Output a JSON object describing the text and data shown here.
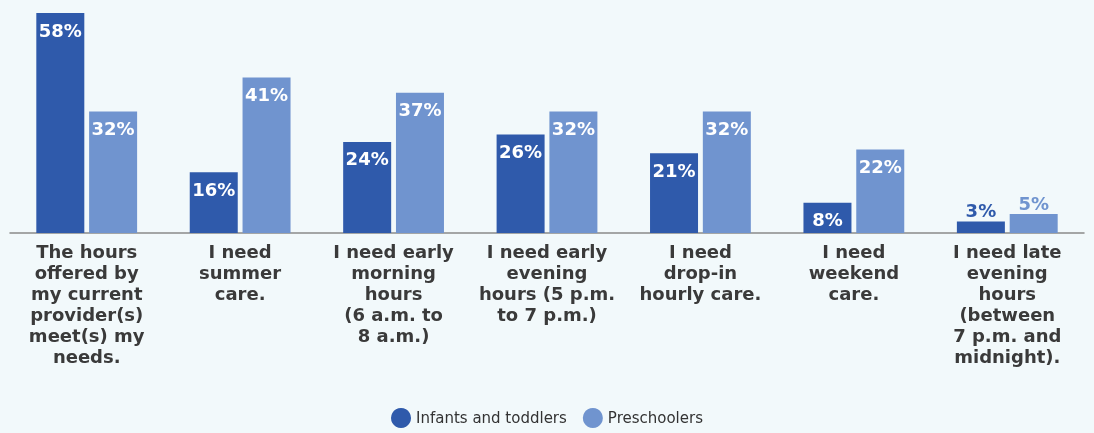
{
  "chart_data": {
    "type": "bar",
    "categories": [
      "The hours\noffered by\nmy current\nprovider(s)\nmeet(s) my\nneeds.",
      "I need\nsummer\ncare.",
      "I need early\nmorning\nhours\n(6 a.m. to\n8 a.m.)",
      "I need early\nevening\nhours (5 p.m.\nto 7 p.m.)",
      "I need\ndrop-in\nhourly care.",
      "I need\nweekend\ncare.",
      "I need late\nevening\nhours\n(between\n7 p.m. and\nmidnight)."
    ],
    "series": [
      {
        "name": "Infants and toddlers",
        "color": "#2f5aab",
        "values": [
          58,
          16,
          24,
          26,
          21,
          8,
          3
        ],
        "value_labels": [
          "58%",
          "16%",
          "24%",
          "26%",
          "21%",
          "8%",
          "3%"
        ]
      },
      {
        "name": "Preschoolers",
        "color": "#7094cf",
        "values": [
          32,
          41,
          37,
          32,
          32,
          22,
          5
        ],
        "value_labels": [
          "32%",
          "41%",
          "37%",
          "32%",
          "32%",
          "22%",
          "5%"
        ]
      }
    ],
    "legend": "bottom"
  }
}
